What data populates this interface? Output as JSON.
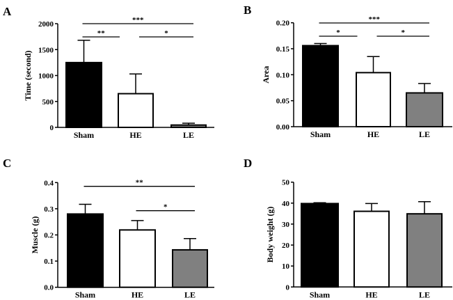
{
  "chart_data": [
    {
      "panel": "A",
      "type": "bar",
      "categories": [
        "Sham",
        "HE",
        "LE"
      ],
      "values": [
        1250,
        650,
        45
      ],
      "error_upper": [
        1680,
        1030,
        80
      ],
      "ylabel": "Time (second)",
      "ylim": [
        0,
        2000
      ],
      "yticks": [
        "0",
        "500",
        "1000",
        "1500",
        "2000"
      ],
      "ytick_values": [
        0,
        500,
        1000,
        1500,
        2000
      ],
      "colors": [
        "#000000",
        "#ffffff",
        "#808080"
      ],
      "significance": [
        {
          "from": "Sham",
          "to": "LE",
          "label": "***"
        },
        {
          "from": "Sham",
          "to": "HE",
          "label": "**"
        },
        {
          "from": "HE",
          "to": "LE",
          "label": "*"
        }
      ]
    },
    {
      "panel": "B",
      "type": "bar",
      "categories": [
        "Sham",
        "HE",
        "LE"
      ],
      "values": [
        0.156,
        0.104,
        0.065
      ],
      "error_upper": [
        0.16,
        0.135,
        0.083
      ],
      "ylabel": "Area",
      "ylim": [
        0,
        0.2
      ],
      "yticks": [
        "0.00",
        "0.05",
        "0.10",
        "0.15",
        "0.20"
      ],
      "ytick_values": [
        0,
        0.05,
        0.1,
        0.15,
        0.2
      ],
      "colors": [
        "#000000",
        "#ffffff",
        "#808080"
      ],
      "significance": [
        {
          "from": "Sham",
          "to": "LE",
          "label": "***"
        },
        {
          "from": "Sham",
          "to": "HE",
          "label": "*"
        },
        {
          "from": "HE",
          "to": "LE",
          "label": "*"
        }
      ]
    },
    {
      "panel": "C",
      "type": "bar",
      "categories": [
        "Sham",
        "HE",
        "LE"
      ],
      "values": [
        0.28,
        0.219,
        0.143
      ],
      "error_upper": [
        0.317,
        0.255,
        0.186
      ],
      "ylabel": "Muscle (g)",
      "ylim": [
        0,
        0.4
      ],
      "yticks": [
        "0.0",
        "0.1",
        "0.2",
        "0.3",
        "0.4"
      ],
      "ytick_values": [
        0,
        0.1,
        0.2,
        0.3,
        0.4
      ],
      "colors": [
        "#000000",
        "#ffffff",
        "#808080"
      ],
      "significance": [
        {
          "from": "Sham",
          "to": "LE",
          "label": "**"
        },
        {
          "from": "HE",
          "to": "LE",
          "label": "*"
        }
      ]
    },
    {
      "panel": "D",
      "type": "bar",
      "categories": [
        "Sham",
        "HE",
        "LE"
      ],
      "values": [
        39.8,
        36.1,
        34.9
      ],
      "error_upper": [
        40.2,
        39.8,
        40.7
      ],
      "ylabel": "Body weight (g)",
      "ylim": [
        0,
        50
      ],
      "yticks": [
        "0",
        "10",
        "20",
        "30",
        "40",
        "50"
      ],
      "ytick_values": [
        0,
        10,
        20,
        30,
        40,
        50
      ],
      "colors": [
        "#000000",
        "#ffffff",
        "#808080"
      ],
      "significance": []
    }
  ]
}
